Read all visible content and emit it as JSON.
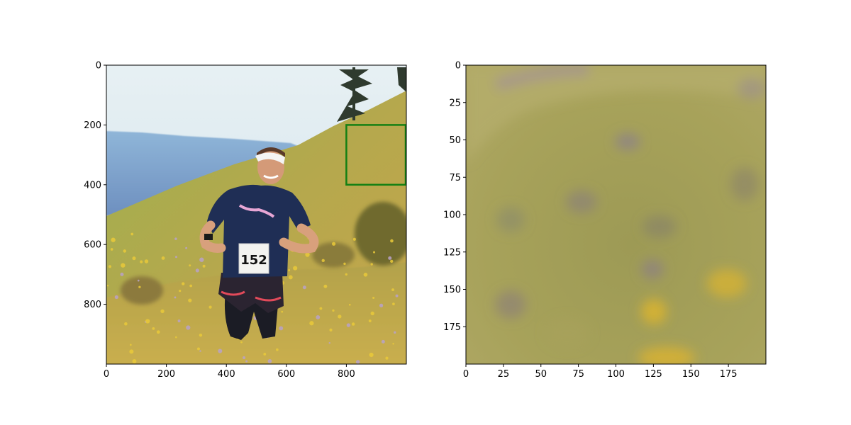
{
  "chart_data": [
    {
      "type": "image",
      "image_description": "Trail runner on grassy hillside with wildflowers, blue hills and sky behind, pine tree at top right",
      "xlim": [
        0,
        1000
      ],
      "ylim": [
        1000,
        0
      ],
      "xticks": [
        "0",
        "200",
        "400",
        "600",
        "800"
      ],
      "yticks": [
        "0",
        "200",
        "400",
        "600",
        "800"
      ],
      "highlight_box": {
        "x0": 800,
        "x1": 1000,
        "y0": 200,
        "y1": 400,
        "color": "#138013"
      },
      "bib_number": "152"
    },
    {
      "type": "image",
      "image_description": "Zoomed, blurred crop of the highlighted region: green-olive grass with purple and yellow flowers",
      "xlim": [
        0,
        200
      ],
      "ylim": [
        200,
        0
      ],
      "xticks": [
        "0",
        "25",
        "50",
        "75",
        "100",
        "125",
        "150",
        "175"
      ],
      "yticks": [
        "0",
        "25",
        "50",
        "75",
        "100",
        "125",
        "150",
        "175"
      ]
    }
  ]
}
